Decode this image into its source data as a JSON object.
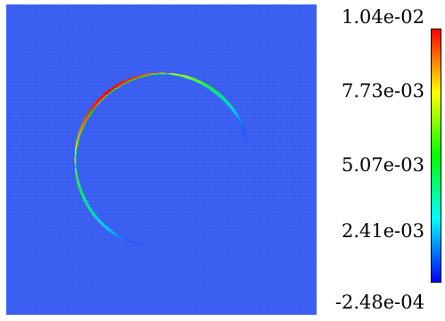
{
  "field": {
    "colormap": [
      "#0000ff",
      "#00ffff",
      "#00ff00",
      "#ffff00",
      "#ff0000"
    ],
    "background_color": "#3b5ff0"
  },
  "colorbar": {
    "ticks": [
      "1.04e-02",
      "7.73e-03",
      "5.07e-03",
      "2.41e-03",
      "-2.48e-04"
    ]
  }
}
